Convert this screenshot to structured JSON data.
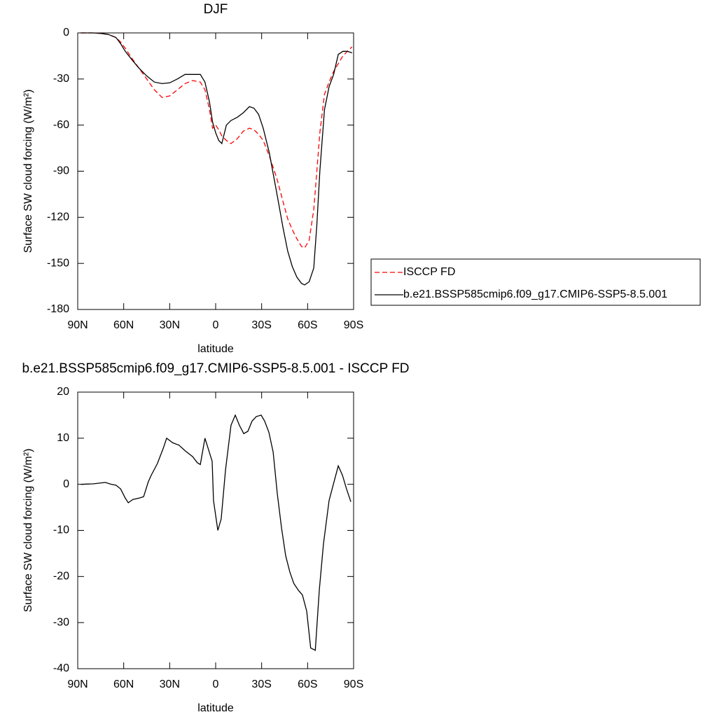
{
  "chart_data": [
    {
      "type": "line",
      "title": "DJF",
      "xlabel": "latitude",
      "ylabel": "Surface SW cloud forcing (W/m²)",
      "x": [
        88,
        80,
        75,
        70,
        65,
        62,
        59,
        55,
        50,
        45,
        40,
        35,
        30,
        25,
        20,
        15,
        10,
        7,
        4,
        2,
        0,
        -2,
        -4,
        -7,
        -10,
        -14,
        -18,
        -22,
        -25,
        -28,
        -31,
        -35,
        -40,
        -44,
        -47,
        -50,
        -53,
        -56,
        -58,
        -61,
        -64,
        -66,
        -68,
        -71,
        -74,
        -77,
        -80,
        -83,
        -86,
        -89
      ],
      "series": [
        {
          "name": "ISCCP FD",
          "color": "#ff0000",
          "style": "dashed",
          "values": [
            0,
            0,
            -0.3,
            -1,
            -3,
            -6,
            -10,
            -16,
            -23,
            -30,
            -37,
            -42,
            -41,
            -37,
            -33,
            -31,
            -32,
            -37,
            -50,
            -62,
            -60,
            -63,
            -67,
            -70,
            -72,
            -69,
            -64,
            -62,
            -63,
            -66,
            -70,
            -80,
            -95,
            -110,
            -121,
            -128,
            -134,
            -139,
            -140,
            -135,
            -115,
            -90,
            -65,
            -40,
            -32,
            -25,
            -20,
            -15,
            -12,
            -9
          ]
        },
        {
          "name": "b.e21.BSSP585cmip6.f09_g17.CMIP6-SSP5-8.5.001",
          "color": "#000000",
          "style": "solid",
          "values": [
            0,
            0,
            -0.3,
            -1,
            -3,
            -7,
            -12,
            -17,
            -23,
            -28,
            -32,
            -33,
            -32.5,
            -30,
            -27,
            -27,
            -27,
            -32,
            -45,
            -58,
            -65,
            -70,
            -72,
            -60,
            -57,
            -55,
            -52,
            -48,
            -49,
            -53,
            -62,
            -78,
            -105,
            -127,
            -142,
            -152,
            -159,
            -163,
            -164,
            -162,
            -153,
            -125,
            -90,
            -50,
            -35,
            -27,
            -14,
            -12,
            -12,
            -13
          ]
        }
      ],
      "xlim": [
        90,
        -90
      ],
      "xticks": [
        {
          "value": 90,
          "label": "90N"
        },
        {
          "value": 60,
          "label": "60N"
        },
        {
          "value": 30,
          "label": "30N"
        },
        0,
        {
          "value": -30,
          "label": "30S"
        },
        {
          "value": -60,
          "label": "60S"
        },
        {
          "value": -90,
          "label": "90S"
        }
      ],
      "ylim": [
        -180,
        0
      ],
      "yticks": [
        0,
        -30,
        -60,
        -90,
        -120,
        -150,
        -180
      ],
      "legend": "right"
    },
    {
      "type": "line",
      "title": "b.e21.BSSP585cmip6.f09_g17.CMIP6-SSP5-8.5.001 - ISCCP FD",
      "xlabel": "latitude",
      "ylabel": "Surface SW cloud forcing (W/m²)",
      "x": [
        88,
        80,
        72,
        68,
        65,
        62,
        59,
        57,
        54,
        50,
        47,
        44,
        42,
        38,
        34,
        32,
        28,
        24,
        20,
        15,
        12,
        10,
        7,
        2.3,
        1.4,
        -1.4,
        -3.6,
        -6.4,
        -10,
        -12.8,
        -15.5,
        -18.3,
        -21,
        -23.7,
        -26.5,
        -29.7,
        -32,
        -34.7,
        -37.5,
        -40.2,
        -43,
        -45.7,
        -48.4,
        -51,
        -54,
        -56.6,
        -59.4,
        -62,
        -65,
        -67.6,
        -70.3,
        -74,
        -76.8,
        -80,
        -82.7,
        -85.4,
        -88.2
      ],
      "series": [
        {
          "color": "#000000",
          "style": "solid",
          "values": [
            0,
            0.1,
            0.4,
            0,
            -0.2,
            -1,
            -3,
            -4,
            -3.3,
            -3,
            -2.7,
            0.5,
            2,
            4.5,
            8,
            10,
            9,
            8.5,
            7.3,
            6,
            4.7,
            4.3,
            10,
            5,
            -3.5,
            -10,
            -7.5,
            3,
            12.8,
            15,
            12.8,
            11,
            11.5,
            13.7,
            14.7,
            15,
            13.7,
            11.3,
            7,
            -2,
            -9.5,
            -15.5,
            -19,
            -21.5,
            -23,
            -24,
            -27.5,
            -35.5,
            -36,
            -23,
            -13,
            -3.5,
            0,
            4,
            2,
            -1,
            -3.8
          ]
        }
      ],
      "xlim": [
        90,
        -90
      ],
      "xticks": [
        {
          "value": 90,
          "label": "90N"
        },
        {
          "value": 60,
          "label": "60N"
        },
        {
          "value": 30,
          "label": "30N"
        },
        0,
        {
          "value": -30,
          "label": "30S"
        },
        {
          "value": -60,
          "label": "60S"
        },
        {
          "value": -90,
          "label": "90S"
        }
      ],
      "ylim": [
        -40,
        20
      ],
      "yticks": [
        20,
        10,
        0,
        -10,
        -20,
        -30,
        -40
      ]
    }
  ]
}
